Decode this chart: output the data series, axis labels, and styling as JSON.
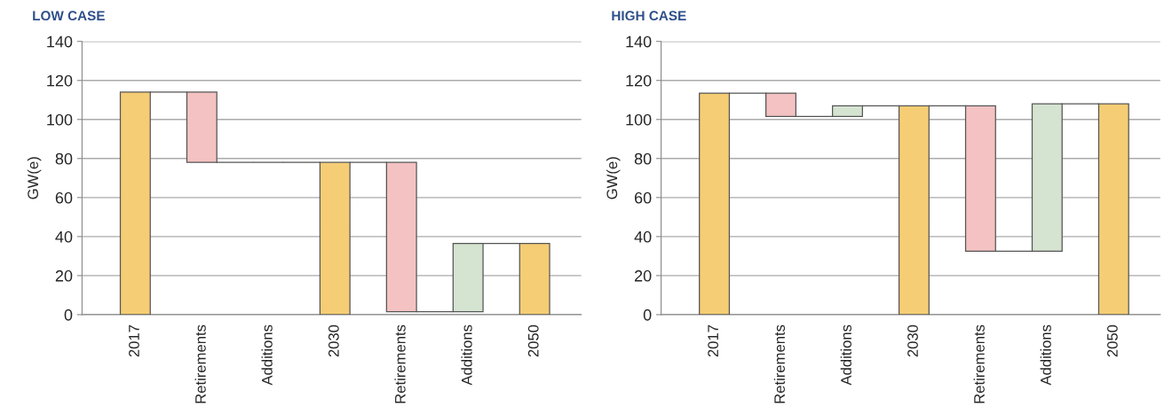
{
  "chart_data": [
    {
      "type": "bar",
      "title": "LOW CASE",
      "ylabel": "GW(e)",
      "categories": [
        "2017",
        "Retirements",
        "Additions",
        "2030",
        "Retirements",
        "Additions",
        "2050"
      ],
      "values": [
        114,
        36,
        0,
        78,
        76.5,
        35,
        36.5
      ],
      "base": [
        0,
        78,
        78,
        0,
        1.5,
        1.5,
        0
      ],
      "colors": [
        "#f5cd74",
        "#f4c2c2",
        "#555555",
        "#f5cd74",
        "#f4c2c2",
        "#d5e3d1",
        "#f5cd74"
      ],
      "ylim": [
        0,
        140
      ],
      "yticks": [
        0,
        20,
        40,
        60,
        80,
        100,
        120,
        140
      ],
      "grid": "y"
    },
    {
      "type": "bar",
      "title": "HIGH CASE",
      "ylabel": "GW(e)",
      "categories": [
        "2017",
        "Retirements",
        "Additions",
        "2030",
        "Retirements",
        "Additions",
        "2050"
      ],
      "values": [
        113.5,
        12,
        5.5,
        107,
        74.5,
        75.5,
        108
      ],
      "base": [
        0,
        101.5,
        101.5,
        0,
        32.5,
        32.5,
        0
      ],
      "colors": [
        "#f5cd74",
        "#f4c2c2",
        "#d5e3d1",
        "#f5cd74",
        "#f4c2c2",
        "#d5e3d1",
        "#f5cd74"
      ],
      "ylim": [
        0,
        140
      ],
      "yticks": [
        0,
        20,
        40,
        60,
        80,
        100,
        120,
        140
      ],
      "grid": "y"
    }
  ]
}
